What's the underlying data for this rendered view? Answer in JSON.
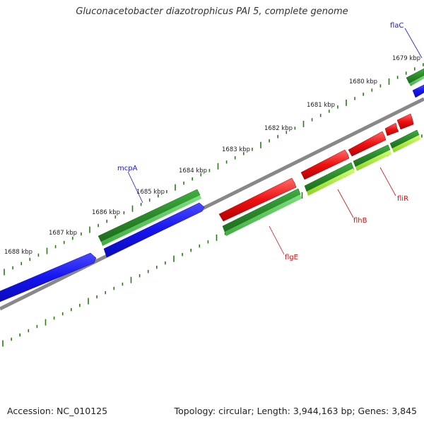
{
  "title": "Gluconacetobacter diazotrophicus PAI 5, complete genome",
  "footer": {
    "accession": "Accession: NC_010125",
    "stats": "Topology: circular; Length: 3,944,163 bp; Genes: 3,845"
  },
  "scale_labels": [
    "1679 kbp",
    "1680 kbp",
    "1681 kbp",
    "1682 kbp",
    "1683 kbp",
    "1684 kbp",
    "1685 kbp",
    "1686 kbp",
    "1687 kbp",
    "1688 kbp"
  ],
  "gene_labels": {
    "flaC": "flaC",
    "mcpA": "mcpA",
    "flgE": "flgE",
    "flhB": "flhB",
    "fliR": "fliR"
  },
  "colors": {
    "forward_cds": "#2e8b2e",
    "reverse_cds": "#1a1aee",
    "rna_red": "#ee1111",
    "lime": "#b7f03a",
    "backbone": "#808080",
    "tick": "#2a7a1a",
    "label_blue": "#1a1acc",
    "label_red": "#cc1111"
  }
}
